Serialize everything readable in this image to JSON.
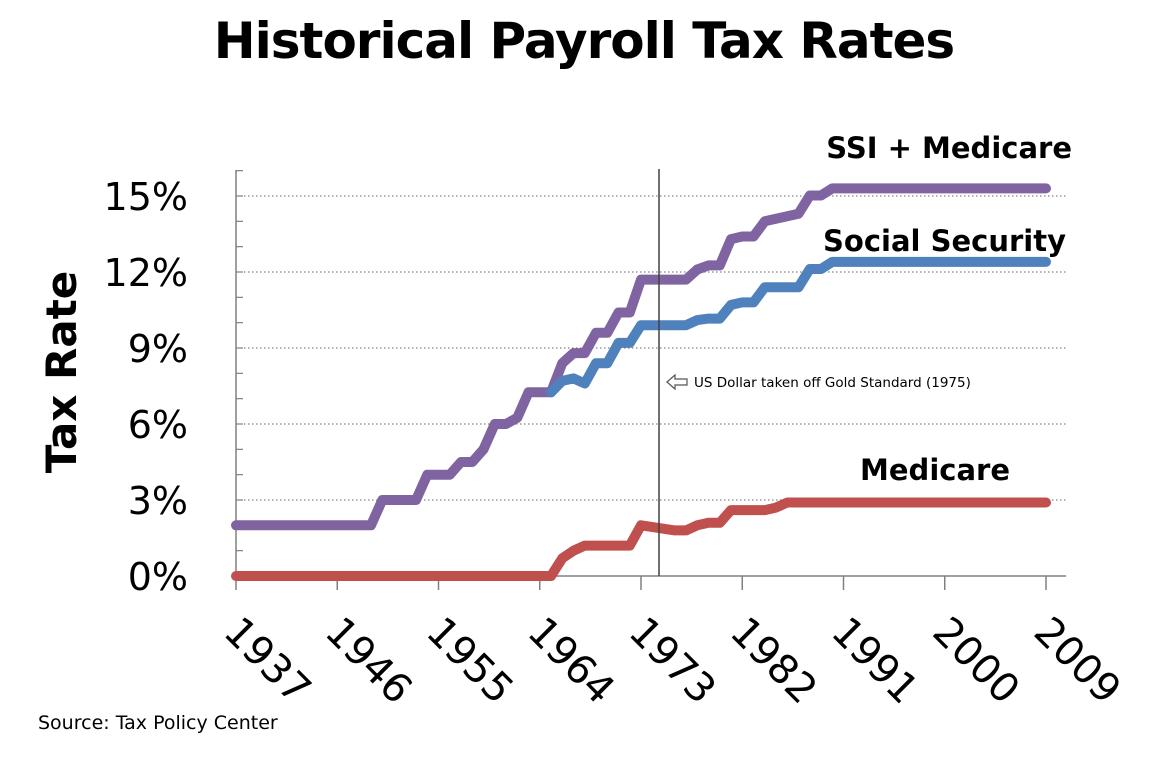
{
  "title": "Historical Payroll Tax Rates",
  "source": "Source: Tax Policy Center",
  "chart_data": {
    "type": "line",
    "title": "Historical Payroll Tax Rates",
    "xlabel": "",
    "ylabel": "Tax Rate",
    "xlim": [
      1937,
      2009
    ],
    "ylim": [
      0,
      15
    ],
    "x_ticks": [
      "1937",
      "1946",
      "1955",
      "1964",
      "1973",
      "1982",
      "1991",
      "2000",
      "2009"
    ],
    "y_ticks": [
      "0%",
      "3%",
      "6%",
      "9%",
      "12%",
      "15%"
    ],
    "y_tick_values": [
      0,
      3,
      6,
      9,
      12,
      15
    ],
    "grid": "horizontal-dotted",
    "colors": {
      "ssi_medicare": "#8064a2",
      "social_security": "#4f81bd",
      "medicare": "#c0504d",
      "marker_line": "#404040"
    },
    "series": [
      {
        "name": "SSI + Medicare",
        "color": "#8064a2",
        "x": [
          1937,
          1949,
          1950,
          1953,
          1954,
          1956,
          1957,
          1958,
          1959,
          1960,
          1961,
          1962,
          1963,
          1964,
          1965,
          1966,
          1967,
          1968,
          1969,
          1970,
          1971,
          1972,
          1973,
          1976,
          1977,
          1978,
          1979,
          1980,
          1981,
          1982,
          1983,
          1984,
          1985,
          1987,
          1988,
          1989,
          1990,
          2009
        ],
        "y": [
          2.0,
          2.0,
          3.0,
          3.0,
          4.0,
          4.0,
          4.5,
          4.5,
          5.0,
          6.0,
          6.0,
          6.25,
          7.25,
          7.25,
          7.25,
          8.4,
          8.8,
          8.8,
          9.6,
          9.6,
          10.4,
          10.4,
          11.7,
          11.7,
          11.7,
          12.1,
          12.26,
          12.26,
          13.3,
          13.4,
          13.4,
          14.0,
          14.1,
          14.3,
          15.02,
          15.02,
          15.3,
          15.3
        ]
      },
      {
        "name": "Social Security",
        "color": "#4f81bd",
        "x": [
          1965,
          1966,
          1967,
          1968,
          1969,
          1970,
          1971,
          1972,
          1973,
          1976,
          1977,
          1978,
          1979,
          1980,
          1981,
          1982,
          1983,
          1984,
          1985,
          1987,
          1988,
          1989,
          1990,
          2009
        ],
        "y": [
          7.25,
          7.7,
          7.8,
          7.6,
          8.4,
          8.4,
          9.2,
          9.2,
          9.9,
          9.9,
          9.9,
          10.1,
          10.16,
          10.16,
          10.7,
          10.8,
          10.8,
          11.4,
          11.4,
          11.4,
          12.12,
          12.12,
          12.4,
          12.4
        ]
      },
      {
        "name": "Medicare",
        "color": "#c0504d",
        "x": [
          1937,
          1965,
          1966,
          1967,
          1968,
          1969,
          1970,
          1971,
          1972,
          1973,
          1976,
          1977,
          1978,
          1979,
          1980,
          1981,
          1982,
          1983,
          1984,
          1985,
          1986,
          2009
        ],
        "y": [
          0,
          0,
          0.7,
          1.0,
          1.2,
          1.2,
          1.2,
          1.2,
          1.2,
          2.0,
          1.8,
          1.8,
          2.0,
          2.1,
          2.1,
          2.6,
          2.6,
          2.6,
          2.6,
          2.7,
          2.9,
          2.9
        ]
      }
    ],
    "annotations": [
      {
        "x": 1975,
        "text": "US Dollar taken off Gold Standard (1975)",
        "y": 7.8
      }
    ]
  }
}
